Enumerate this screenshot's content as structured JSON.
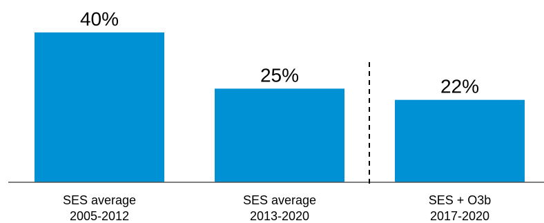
{
  "chart_data": {
    "type": "bar",
    "categories": [
      [
        "SES average",
        "2005-2012"
      ],
      [
        "SES average",
        "2013-2020"
      ],
      [
        "SES + O3b",
        "2017-2020"
      ]
    ],
    "values": [
      40,
      25,
      22
    ],
    "value_labels": [
      "40%",
      "25%",
      "22%"
    ],
    "value_unit": "%",
    "ylim": [
      0,
      40
    ],
    "grid": false,
    "separator_after_index": 1,
    "bar_color": "#0090D4",
    "baseline_color": "#555555",
    "separator_color": "#000000"
  }
}
